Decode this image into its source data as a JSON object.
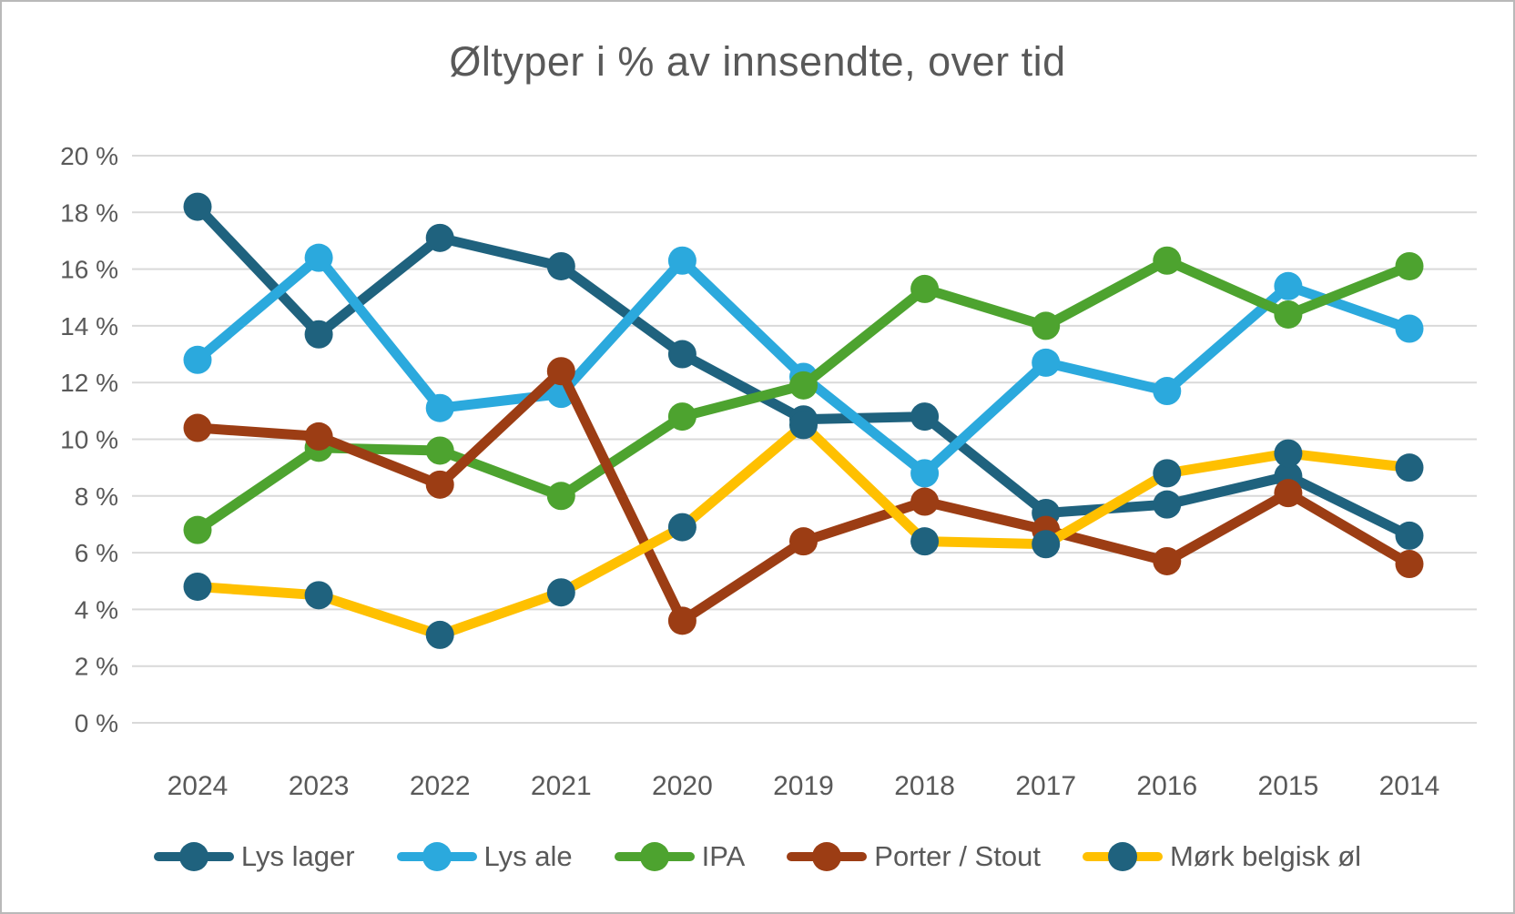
{
  "title": "Øltyper i % av innsendte, over tid",
  "colors": {
    "text_gray": "#595959",
    "gridline": "#d9d9d9",
    "frame_border": "#b9b9b9",
    "lys_lager": "#1f627e",
    "lys_ale": "#2ba9dd",
    "ipa": "#4da32f",
    "porter_stout": "#9c3d14",
    "mork_belgisk_line": "#ffc000",
    "mork_belgisk_marker": "#1f627e"
  },
  "chart_data": {
    "type": "line",
    "title": "Øltyper i % av innsendte, over tid",
    "xlabel": "",
    "ylabel": "",
    "ylim": [
      0,
      20
    ],
    "y_tick_step": 2,
    "grid": "horizontal",
    "legend_position": "bottom",
    "y_tick_labels": [
      "20 %",
      "18 %",
      "16 %",
      "14 %",
      "12 %",
      "10 %",
      "8 %",
      "6 %",
      "4 %",
      "2 %",
      "0 %"
    ],
    "categories": [
      "2024",
      "2023",
      "2022",
      "2021",
      "2020",
      "2019",
      "2018",
      "2017",
      "2016",
      "2015",
      "2014"
    ],
    "series": [
      {
        "name": "Lys lager",
        "slug": "lys-lager",
        "line_color": "#1f627e",
        "marker_color": "#1f627e",
        "values": [
          18.2,
          13.7,
          17.1,
          16.1,
          13.0,
          10.7,
          10.8,
          7.4,
          7.7,
          8.7,
          6.6
        ]
      },
      {
        "name": "Lys ale",
        "slug": "lys-ale",
        "line_color": "#2ba9dd",
        "marker_color": "#2ba9dd",
        "values": [
          12.8,
          16.4,
          11.1,
          11.6,
          16.3,
          12.2,
          8.8,
          12.7,
          11.7,
          15.4,
          13.9
        ]
      },
      {
        "name": "IPA",
        "slug": "ipa",
        "line_color": "#4da32f",
        "marker_color": "#4da32f",
        "values": [
          6.8,
          9.7,
          9.6,
          8.0,
          10.8,
          11.9,
          15.3,
          14.0,
          16.3,
          14.4,
          16.1
        ]
      },
      {
        "name": "Porter / Stout",
        "slug": "porter-stout",
        "line_color": "#9c3d14",
        "marker_color": "#9c3d14",
        "values": [
          10.4,
          10.1,
          8.4,
          12.4,
          3.6,
          6.4,
          7.8,
          6.8,
          5.7,
          8.1,
          5.6
        ]
      },
      {
        "name": "Mørk belgisk øl",
        "slug": "mork-belgisk-ol",
        "line_color": "#ffc000",
        "marker_color": "#1f627e",
        "values": [
          4.8,
          4.5,
          3.1,
          4.6,
          6.9,
          10.5,
          6.4,
          6.3,
          8.8,
          9.5,
          9.0
        ]
      }
    ]
  }
}
